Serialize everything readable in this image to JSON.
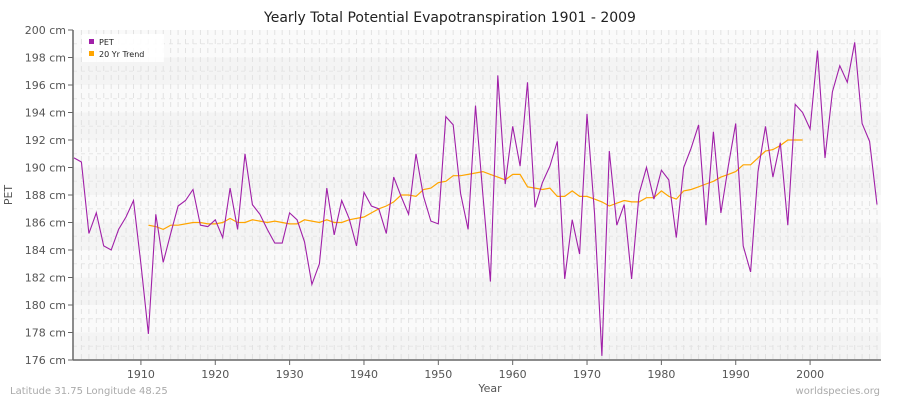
{
  "chart_data": {
    "type": "line",
    "title": "Yearly Total Potential Evapotranspiration 1901 - 2009",
    "xlabel": "Year",
    "ylabel": "PET",
    "xlim": [
      1901,
      2009
    ],
    "ylim": [
      176,
      200
    ],
    "y_unit": "cm",
    "x_ticks": [
      1910,
      1920,
      1930,
      1940,
      1950,
      1960,
      1970,
      1980,
      1990,
      2000
    ],
    "y_ticks": [
      176,
      178,
      180,
      182,
      184,
      186,
      188,
      190,
      192,
      194,
      196,
      198,
      200
    ],
    "y_tick_labels": [
      "176 cm",
      "178 cm",
      "180 cm",
      "182 cm",
      "184 cm",
      "186 cm",
      "188 cm",
      "190 cm",
      "192 cm",
      "194 cm",
      "196 cm",
      "198 cm",
      "200 cm"
    ],
    "grid": true,
    "legend_position": "top-left",
    "series": [
      {
        "name": "PET",
        "color": "#a020a8",
        "start_year": 1901,
        "values": [
          190.7,
          190.4,
          185.2,
          186.7,
          184.3,
          184.0,
          185.5,
          186.4,
          187.6,
          183.0,
          177.9,
          186.6,
          183.1,
          185.2,
          187.2,
          187.6,
          188.4,
          185.8,
          185.7,
          186.2,
          184.9,
          188.5,
          185.5,
          191.0,
          187.3,
          186.6,
          185.5,
          184.5,
          184.5,
          186.7,
          186.2,
          184.6,
          181.5,
          183.0,
          188.5,
          185.1,
          187.6,
          186.3,
          184.3,
          188.2,
          187.2,
          187.0,
          185.2,
          189.3,
          187.9,
          186.6,
          191.0,
          187.9,
          186.1,
          185.9,
          193.7,
          193.1,
          188.1,
          185.5,
          194.5,
          188.0,
          181.7,
          196.7,
          188.8,
          193.0,
          190.1,
          196.2,
          187.1,
          188.9,
          190.1,
          191.9,
          181.9,
          186.2,
          183.7,
          193.9,
          186.7,
          176.3,
          191.2,
          185.8,
          187.3,
          181.9,
          188.1,
          190.0,
          187.7,
          189.8,
          189.1,
          184.9,
          190.0,
          191.4,
          193.1,
          185.8,
          192.6,
          186.7,
          190.1,
          193.2,
          184.3,
          182.4,
          189.7,
          193.0,
          189.3,
          191.8,
          185.8,
          194.6,
          194.0,
          192.8,
          198.5,
          190.7,
          195.5,
          197.4,
          196.2,
          199.1,
          193.2,
          191.9,
          187.3
        ]
      },
      {
        "name": "20 Yr Trend",
        "color": "#ffa500",
        "start_year": 1911,
        "values": [
          185.8,
          185.7,
          185.5,
          185.8,
          185.8,
          185.9,
          186.0,
          186.0,
          185.9,
          185.9,
          186.0,
          186.3,
          186.0,
          186.0,
          186.2,
          186.1,
          186.0,
          186.1,
          186.0,
          185.9,
          185.9,
          186.2,
          186.1,
          186.0,
          186.2,
          186.0,
          186.0,
          186.2,
          186.3,
          186.4,
          186.7,
          187.0,
          187.2,
          187.5,
          188.0,
          188.0,
          187.9,
          188.4,
          188.5,
          188.9,
          189.0,
          189.4,
          189.4,
          189.5,
          189.6,
          189.7,
          189.5,
          189.3,
          189.1,
          189.5,
          189.5,
          188.6,
          188.5,
          188.4,
          188.5,
          187.9,
          187.9,
          188.3,
          187.9,
          187.9,
          187.7,
          187.5,
          187.2,
          187.4,
          187.6,
          187.5,
          187.5,
          187.8,
          187.8,
          188.3,
          187.9,
          187.7,
          188.3,
          188.4,
          188.6,
          188.8,
          189.0,
          189.3,
          189.5,
          189.7,
          190.2,
          190.2,
          190.7,
          191.2,
          191.3,
          191.6,
          192.0,
          192.0,
          192.0
        ]
      }
    ]
  },
  "footer": {
    "location": "Latitude 31.75 Longitude 48.25",
    "site": "worldspecies.org"
  }
}
